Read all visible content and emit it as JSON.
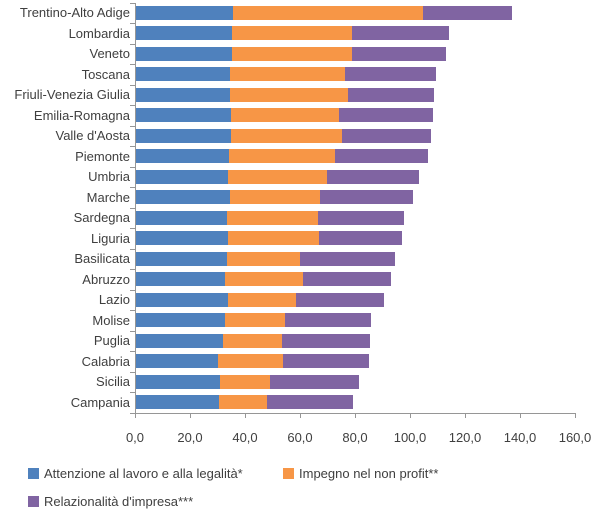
{
  "chart_data": {
    "type": "bar",
    "orientation": "horizontal",
    "stacked": true,
    "title": "",
    "xlabel": "",
    "ylabel": "",
    "xlim": [
      0,
      160
    ],
    "grid": false,
    "legend_position": "bottom",
    "x_ticks": [
      "0,0",
      "20,0",
      "40,0",
      "60,0",
      "80,0",
      "100,0",
      "120,0",
      "140,0",
      "160,0"
    ],
    "x_tick_values": [
      0,
      20,
      40,
      60,
      80,
      100,
      120,
      140,
      160
    ],
    "categories": [
      "Trentino-Alto Adige",
      "Lombardia",
      "Veneto",
      "Toscana",
      "Friuli-Venezia Giulia",
      "Emilia-Romagna",
      "Valle d'Aosta",
      "Piemonte",
      "Umbria",
      "Marche",
      "Sardegna",
      "Liguria",
      "Basilicata",
      "Abruzzo",
      "Lazio",
      "Molise",
      "Puglia",
      "Calabria",
      "Sicilia",
      "Campania"
    ],
    "series": [
      {
        "name": "Attenzione al lavoro e alla legalità*",
        "color": "#4F81BD",
        "values": [
          35.4,
          34.8,
          34.9,
          34.2,
          34.2,
          34.5,
          34.5,
          33.7,
          33.5,
          34.1,
          33.0,
          33.3,
          33.0,
          32.2,
          33.3,
          32.2,
          31.8,
          29.7,
          30.5,
          30.2
        ]
      },
      {
        "name": "Impegno nel non profit**",
        "color": "#F79646",
        "values": [
          68.9,
          43.8,
          43.6,
          41.7,
          42.9,
          39.3,
          40.3,
          38.5,
          35.8,
          32.9,
          33.3,
          33.2,
          26.8,
          28.4,
          25.0,
          22.1,
          21.2,
          23.9,
          18.2,
          17.3
        ]
      },
      {
        "name": "Relazionalità d'impresa***",
        "color": "#8064A2",
        "values": [
          32.6,
          35.4,
          34.3,
          33.1,
          31.4,
          34.2,
          32.5,
          33.9,
          33.5,
          33.7,
          31.2,
          30.2,
          34.5,
          32.0,
          31.9,
          31.2,
          32.2,
          31.0,
          32.3,
          31.3
        ]
      }
    ],
    "totals": [
      136.9,
      114.0,
      112.8,
      109.0,
      108.5,
      108.0,
      107.3,
      106.1,
      102.8,
      100.7,
      97.5,
      96.7,
      94.3,
      92.6,
      90.2,
      85.5,
      85.2,
      84.6,
      81.0,
      78.8
    ],
    "axis_color": "#969696",
    "text_color": "#3f3f3f"
  }
}
